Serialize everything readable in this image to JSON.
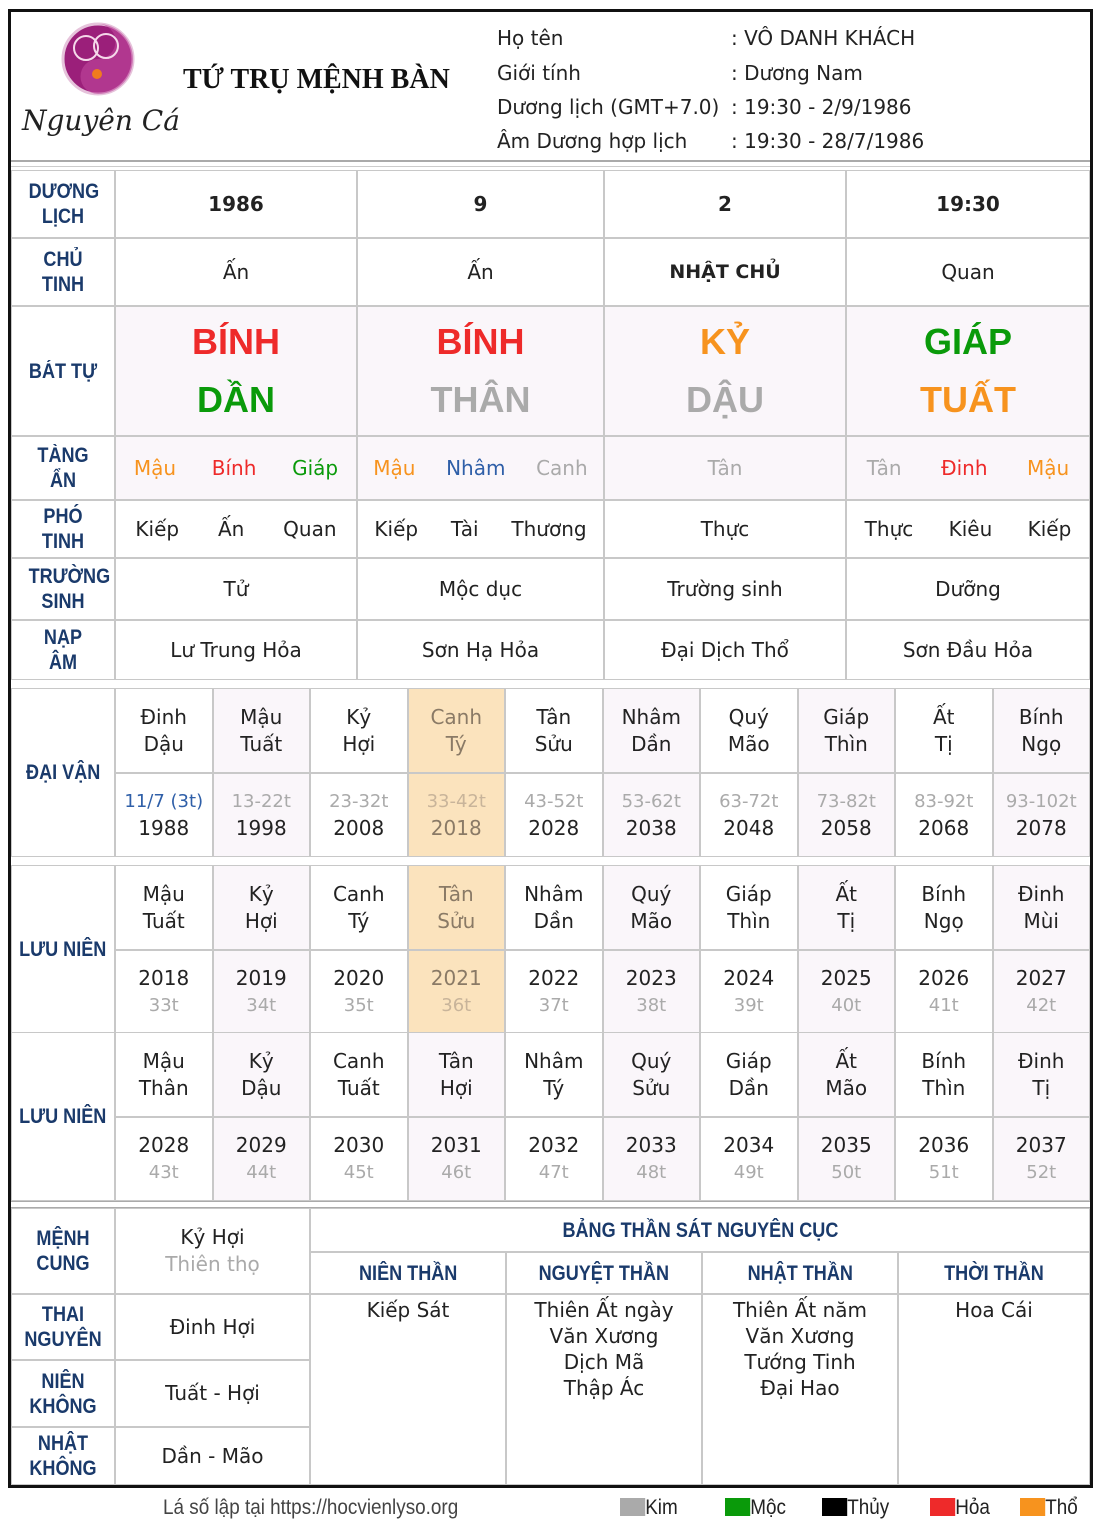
{
  "header": {
    "title": "TỨ TRỤ MỆNH BÀN",
    "logo_text": "Nguyên Cát",
    "info": [
      {
        "label": "Họ tên",
        "value": ": VÔ DANH KHÁCH"
      },
      {
        "label": "Giới tính",
        "value": ": Dương Nam"
      },
      {
        "label": "Dương lịch (GMT+7.0)",
        "value": ": 19:30 - 2/9/1986"
      },
      {
        "label": "Âm Dương hợp lịch",
        "value": ": 19:30 - 28/7/1986"
      }
    ]
  },
  "colors": {
    "Kim": "#aaaaaa",
    "Moc": "#0a9a0a",
    "Thuy": "#000000",
    "Hoa": "#ee2a2a",
    "Tho": "#f7931e",
    "blue": "#2f5fa8",
    "label": "#1a3a6b",
    "highlight": "#fbe3bd"
  },
  "pillars": {
    "labels": {
      "duong_lich": "DƯƠNG LỊCH",
      "chu_tinh": "CHỦ TINH",
      "bat_tu": "BÁT TỰ",
      "tang_an": "TÀNG ẨN",
      "pho_tinh": "PHÓ TINH",
      "truong_sinh": "TRƯỜNG SINH",
      "nap_am": "NẠP ÂM"
    },
    "duong_lich": [
      "1986",
      "9",
      "2",
      "19:30"
    ],
    "chu_tinh": [
      "Ấn",
      "Ấn",
      "NHẬT CHỦ",
      "Quan"
    ],
    "can": [
      {
        "text": "BÍNH",
        "color": "#ee2a2a"
      },
      {
        "text": "BÍNH",
        "color": "#ee2a2a"
      },
      {
        "text": "KỶ",
        "color": "#f7931e"
      },
      {
        "text": "GIÁP",
        "color": "#0a9a0a"
      }
    ],
    "chi": [
      {
        "text": "DẦN",
        "color": "#0a9a0a"
      },
      {
        "text": "THÂN",
        "color": "#aaaaaa"
      },
      {
        "text": "DẬU",
        "color": "#aaaaaa"
      },
      {
        "text": "TUẤT",
        "color": "#f7931e"
      }
    ],
    "tang_an": [
      [
        {
          "text": "Mậu",
          "color": "#f7931e"
        },
        {
          "text": "Bính",
          "color": "#ee2a2a"
        },
        {
          "text": "Giáp",
          "color": "#0a9a0a"
        }
      ],
      [
        {
          "text": "Mậu",
          "color": "#f7931e"
        },
        {
          "text": "Nhâm",
          "color": "#2f5fa8"
        },
        {
          "text": "Canh",
          "color": "#aaaaaa"
        }
      ],
      [
        {
          "text": "Tân",
          "color": "#aaaaaa"
        }
      ],
      [
        {
          "text": "Tân",
          "color": "#aaaaaa"
        },
        {
          "text": "Đinh",
          "color": "#ee2a2a"
        },
        {
          "text": "Mậu",
          "color": "#f7931e"
        }
      ]
    ],
    "pho_tinh": [
      [
        "Kiếp",
        "Ấn",
        "Quan"
      ],
      [
        "Kiếp",
        "Tài",
        "Thương"
      ],
      [
        "Thực"
      ],
      [
        "Thực",
        "Kiêu",
        "Kiếp"
      ]
    ],
    "truong_sinh": [
      "Tử",
      "Mộc dục",
      "Trường sinh",
      "Dưỡng"
    ],
    "nap_am": [
      "Lư Trung Hỏa",
      "Sơn Hạ Hỏa",
      "Đại Dịch Thổ",
      "Sơn Đầu Hỏa"
    ]
  },
  "dai_van": {
    "label": "ĐẠI VẬN",
    "highlight_index": 3,
    "items": [
      {
        "can": "Đinh",
        "chi": "Dậu",
        "age": "11/7 (3t)",
        "year": "1988"
      },
      {
        "can": "Mậu",
        "chi": "Tuất",
        "age": "13-22t",
        "year": "1998"
      },
      {
        "can": "Kỷ",
        "chi": "Hợi",
        "age": "23-32t",
        "year": "2008"
      },
      {
        "can": "Canh",
        "chi": "Tý",
        "age": "33-42t",
        "year": "2018"
      },
      {
        "can": "Tân",
        "chi": "Sửu",
        "age": "43-52t",
        "year": "2028"
      },
      {
        "can": "Nhâm",
        "chi": "Dần",
        "age": "53-62t",
        "year": "2038"
      },
      {
        "can": "Quý",
        "chi": "Mão",
        "age": "63-72t",
        "year": "2048"
      },
      {
        "can": "Giáp",
        "chi": "Thìn",
        "age": "73-82t",
        "year": "2058"
      },
      {
        "can": "Ất",
        "chi": "Tị",
        "age": "83-92t",
        "year": "2068"
      },
      {
        "can": "Bính",
        "chi": "Ngọ",
        "age": "93-102t",
        "year": "2078"
      }
    ]
  },
  "luu_nien": [
    {
      "label": "LƯU NIÊN",
      "highlight_index": 3,
      "items": [
        {
          "can": "Mậu",
          "chi": "Tuất",
          "year": "2018",
          "age": "33t"
        },
        {
          "can": "Kỷ",
          "chi": "Hợi",
          "year": "2019",
          "age": "34t"
        },
        {
          "can": "Canh",
          "chi": "Tý",
          "year": "2020",
          "age": "35t"
        },
        {
          "can": "Tân",
          "chi": "Sửu",
          "year": "2021",
          "age": "36t"
        },
        {
          "can": "Nhâm",
          "chi": "Dần",
          "year": "2022",
          "age": "37t"
        },
        {
          "can": "Quý",
          "chi": "Mão",
          "year": "2023",
          "age": "38t"
        },
        {
          "can": "Giáp",
          "chi": "Thìn",
          "year": "2024",
          "age": "39t"
        },
        {
          "can": "Ất",
          "chi": "Tị",
          "year": "2025",
          "age": "40t"
        },
        {
          "can": "Bính",
          "chi": "Ngọ",
          "year": "2026",
          "age": "41t"
        },
        {
          "can": "Đinh",
          "chi": "Mùi",
          "year": "2027",
          "age": "42t"
        }
      ]
    },
    {
      "label": "LƯU NIÊN",
      "highlight_index": -1,
      "items": [
        {
          "can": "Mậu",
          "chi": "Thân",
          "year": "2028",
          "age": "43t"
        },
        {
          "can": "Kỷ",
          "chi": "Dậu",
          "year": "2029",
          "age": "44t"
        },
        {
          "can": "Canh",
          "chi": "Tuất",
          "year": "2030",
          "age": "45t"
        },
        {
          "can": "Tân",
          "chi": "Hợi",
          "year": "2031",
          "age": "46t"
        },
        {
          "can": "Nhâm",
          "chi": "Tý",
          "year": "2032",
          "age": "47t"
        },
        {
          "can": "Quý",
          "chi": "Sửu",
          "year": "2033",
          "age": "48t"
        },
        {
          "can": "Giáp",
          "chi": "Dần",
          "year": "2034",
          "age": "49t"
        },
        {
          "can": "Ất",
          "chi": "Mão",
          "year": "2035",
          "age": "50t"
        },
        {
          "can": "Bính",
          "chi": "Thìn",
          "year": "2036",
          "age": "51t"
        },
        {
          "can": "Đinh",
          "chi": "Tị",
          "year": "2037",
          "age": "52t"
        }
      ]
    }
  ],
  "cung": [
    {
      "label": "MỆNH CUNG",
      "value": "Kỷ Hợi",
      "sub": "Thiên thọ"
    },
    {
      "label": "THAI NGUYÊN",
      "value": "Đinh Hợi"
    },
    {
      "label": "NIÊN KHÔNG",
      "value": "Tuất - Hợi"
    },
    {
      "label": "NHẬT KHÔNG",
      "value": "Dần - Mão"
    }
  ],
  "than_sat": {
    "title": "BẢNG THẦN SÁT NGUYÊN CỤC",
    "columns": [
      {
        "header": "NIÊN THẦN",
        "items": [
          "Kiếp Sát"
        ]
      },
      {
        "header": "NGUYỆT THẦN",
        "items": [
          "Thiên Ất ngày",
          "Văn Xương",
          "Dịch Mã",
          "Thập Ác"
        ]
      },
      {
        "header": "NHẬT THẦN",
        "items": [
          "Thiên Ất năm",
          "Văn Xương",
          "Tướng Tinh",
          "Đại Hao"
        ]
      },
      {
        "header": "THỜI THẦN",
        "items": [
          "Hoa Cái"
        ]
      }
    ]
  },
  "footer": {
    "text": "Lá số lập tại https://hocvienlyso.org",
    "legend": [
      {
        "label": "Kim",
        "color": "#aaaaaa"
      },
      {
        "label": "Mộc",
        "color": "#0a9a0a"
      },
      {
        "label": "Thủy",
        "color": "#000000"
      },
      {
        "label": "Hỏa",
        "color": "#ee2a2a"
      },
      {
        "label": "Thổ",
        "color": "#f7931e"
      }
    ]
  }
}
